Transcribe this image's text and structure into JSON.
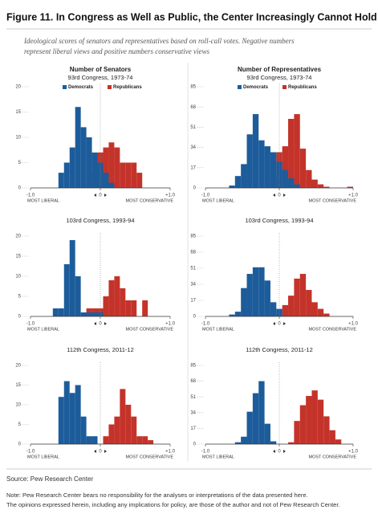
{
  "header": {
    "title": "Figure 11. In Congress as Well as Public, the Center Increasingly Cannot Hold",
    "subtitle_lines": [
      "Ideological scores of senators and representatives based on roll-call votes. Negative numbers",
      "represent liberal views and positive numbers conservative views"
    ]
  },
  "chart_data": [
    {
      "type": "histogram",
      "ylabel": "Number of Senators",
      "title": "93rd Congress, 1973-74",
      "legend": true,
      "bins": [
        -1,
        -0.92,
        -0.84,
        -0.76,
        -0.68,
        -0.6,
        -0.52,
        -0.44,
        -0.36,
        -0.28,
        -0.2,
        -0.12,
        -0.04,
        0.04,
        0.12,
        0.2,
        0.28,
        0.36,
        0.44,
        0.52,
        0.6,
        0.68,
        0.76,
        0.84,
        0.92,
        1
      ],
      "series": [
        {
          "name": "Democrats",
          "color": "#1d5c9b",
          "values": [
            0,
            0,
            0,
            0,
            0,
            3,
            5,
            8,
            16,
            12,
            10,
            7,
            5,
            3,
            1,
            0,
            0,
            0,
            0,
            0,
            0,
            0,
            0,
            0,
            0
          ]
        },
        {
          "name": "Republicans",
          "color": "#c4332a",
          "values": [
            0,
            0,
            0,
            0,
            0,
            0,
            0,
            0,
            0,
            0,
            0,
            3,
            7,
            8,
            9,
            8,
            5,
            5,
            5,
            3,
            0,
            0,
            0,
            0,
            0
          ]
        }
      ],
      "xlim": [
        -1,
        1
      ],
      "xticks": [
        {
          "value": -1,
          "label": "-1.0"
        },
        0,
        {
          "value": 1,
          "label": "+1.0"
        }
      ],
      "x_end_labels": [
        "MOST LIBERAL",
        "MOST CONSERVATIVE"
      ],
      "ylim": [
        0,
        20
      ],
      "yticks": [
        0,
        5,
        10,
        15,
        20
      ]
    },
    {
      "type": "histogram",
      "ylabel": "Number of Representatives",
      "title": "93rd Congress, 1973-74",
      "legend": true,
      "bins": [
        -1,
        -0.92,
        -0.84,
        -0.76,
        -0.68,
        -0.6,
        -0.52,
        -0.44,
        -0.36,
        -0.28,
        -0.2,
        -0.12,
        -0.04,
        0.04,
        0.12,
        0.2,
        0.28,
        0.36,
        0.44,
        0.52,
        0.6,
        0.68,
        0.76,
        0.84,
        0.92,
        1
      ],
      "series": [
        {
          "name": "Democrats",
          "color": "#1d5c9b",
          "values": [
            0,
            0,
            0,
            0,
            2,
            10,
            20,
            45,
            62,
            40,
            35,
            30,
            22,
            15,
            8,
            3,
            0,
            0,
            0,
            0,
            0,
            0,
            0,
            0,
            0
          ]
        },
        {
          "name": "Republicans",
          "color": "#c4332a",
          "values": [
            0,
            0,
            0,
            0,
            0,
            0,
            0,
            0,
            0,
            0,
            0,
            8,
            30,
            35,
            58,
            62,
            33,
            15,
            7,
            3,
            1,
            0,
            0,
            0,
            1
          ]
        }
      ],
      "xlim": [
        -1,
        1
      ],
      "xticks": [
        {
          "value": -1,
          "label": "-1.0"
        },
        0,
        {
          "value": 1,
          "label": "+1.0"
        }
      ],
      "x_end_labels": [
        "MOST LIBERAL",
        "MOST CONSERVATIVE"
      ],
      "ylim": [
        0,
        85
      ],
      "yticks": [
        0,
        17,
        34,
        51,
        68,
        85
      ]
    },
    {
      "type": "histogram",
      "title": "103rd Congress, 1993-94",
      "legend": false,
      "bins": [
        -1,
        -0.92,
        -0.84,
        -0.76,
        -0.68,
        -0.6,
        -0.52,
        -0.44,
        -0.36,
        -0.28,
        -0.2,
        -0.12,
        -0.04,
        0.04,
        0.12,
        0.2,
        0.28,
        0.36,
        0.44,
        0.52,
        0.6,
        0.68,
        0.76,
        0.84,
        0.92,
        1
      ],
      "series": [
        {
          "name": "Democrats",
          "color": "#1d5c9b",
          "values": [
            0,
            0,
            0,
            0,
            2,
            2,
            13,
            19,
            10,
            1,
            1,
            1,
            1,
            0,
            0,
            0,
            0,
            0,
            0,
            0,
            0,
            0,
            0,
            0,
            0
          ]
        },
        {
          "name": "Republicans",
          "color": "#c4332a",
          "values": [
            0,
            0,
            0,
            0,
            0,
            0,
            0,
            0,
            0,
            0,
            2,
            2,
            2,
            5,
            9,
            10,
            7,
            4,
            4,
            0,
            4,
            0,
            0,
            0,
            0
          ]
        }
      ],
      "xlim": [
        -1,
        1
      ],
      "xticks": [
        {
          "value": -1,
          "label": "-1.0"
        },
        0,
        {
          "value": 1,
          "label": "+1.0"
        }
      ],
      "x_end_labels": [
        "MOST LIBERAL",
        "MOST CONSERVATIVE"
      ],
      "ylim": [
        0,
        20
      ],
      "yticks": [
        0,
        5,
        10,
        15,
        20
      ]
    },
    {
      "type": "histogram",
      "title": "103rd Congress, 1993-94",
      "legend": false,
      "bins": [
        -1,
        -0.92,
        -0.84,
        -0.76,
        -0.68,
        -0.6,
        -0.52,
        -0.44,
        -0.36,
        -0.28,
        -0.2,
        -0.12,
        -0.04,
        0.04,
        0.12,
        0.2,
        0.28,
        0.36,
        0.44,
        0.52,
        0.6,
        0.68,
        0.76,
        0.84,
        0.92,
        1
      ],
      "series": [
        {
          "name": "Democrats",
          "color": "#1d5c9b",
          "values": [
            0,
            0,
            0,
            0,
            2,
            5,
            30,
            45,
            52,
            52,
            38,
            15,
            8,
            0,
            0,
            0,
            0,
            0,
            0,
            0,
            0,
            0,
            0,
            0,
            0
          ]
        },
        {
          "name": "Republicans",
          "color": "#c4332a",
          "values": [
            0,
            0,
            0,
            0,
            0,
            0,
            0,
            0,
            0,
            0,
            0,
            0,
            3,
            12,
            22,
            40,
            45,
            28,
            15,
            8,
            3,
            0,
            0,
            0,
            0
          ]
        }
      ],
      "xlim": [
        -1,
        1
      ],
      "xticks": [
        {
          "value": -1,
          "label": "-1.0"
        },
        0,
        {
          "value": 1,
          "label": "+1.0"
        }
      ],
      "x_end_labels": [
        "MOST LIBERAL",
        "MOST CONSERVATIVE"
      ],
      "ylim": [
        0,
        85
      ],
      "yticks": [
        0,
        17,
        34,
        51,
        68,
        85
      ]
    },
    {
      "type": "histogram",
      "title": "112th Congress, 2011-12",
      "legend": false,
      "bins": [
        -1,
        -0.92,
        -0.84,
        -0.76,
        -0.68,
        -0.6,
        -0.52,
        -0.44,
        -0.36,
        -0.28,
        -0.2,
        -0.12,
        -0.04,
        0.04,
        0.12,
        0.2,
        0.28,
        0.36,
        0.44,
        0.52,
        0.6,
        0.68,
        0.76,
        0.84,
        0.92,
        1
      ],
      "series": [
        {
          "name": "Democrats",
          "color": "#1d5c9b",
          "values": [
            0,
            0,
            0,
            0,
            0,
            12,
            16,
            13,
            15,
            7,
            2,
            2,
            0,
            0,
            0,
            0,
            0,
            0,
            0,
            0,
            0,
            0,
            0,
            0,
            0
          ]
        },
        {
          "name": "Republicans",
          "color": "#c4332a",
          "values": [
            0,
            0,
            0,
            0,
            0,
            0,
            0,
            0,
            0,
            0,
            0,
            0,
            0,
            2,
            5,
            7,
            14,
            10,
            7,
            2,
            2,
            1,
            0,
            0,
            0
          ]
        }
      ],
      "xlim": [
        -1,
        1
      ],
      "xticks": [
        {
          "value": -1,
          "label": "-1.0"
        },
        0,
        {
          "value": 1,
          "label": "+1.0"
        }
      ],
      "x_end_labels": [
        "MOST LIBERAL",
        "MOST CONSERVATIVE"
      ],
      "ylim": [
        0,
        20
      ],
      "yticks": [
        0,
        5,
        10,
        15,
        20
      ]
    },
    {
      "type": "histogram",
      "title": "112th Congress, 2011-12",
      "legend": false,
      "bins": [
        -1,
        -0.92,
        -0.84,
        -0.76,
        -0.68,
        -0.6,
        -0.52,
        -0.44,
        -0.36,
        -0.28,
        -0.2,
        -0.12,
        -0.04,
        0.04,
        0.12,
        0.2,
        0.28,
        0.36,
        0.44,
        0.52,
        0.6,
        0.68,
        0.76,
        0.84,
        0.92,
        1
      ],
      "series": [
        {
          "name": "Democrats",
          "color": "#1d5c9b",
          "values": [
            0,
            0,
            0,
            0,
            0,
            2,
            8,
            35,
            55,
            68,
            22,
            3,
            0,
            0,
            0,
            0,
            0,
            0,
            0,
            0,
            0,
            0,
            0,
            0,
            0
          ]
        },
        {
          "name": "Republicans",
          "color": "#c4332a",
          "values": [
            0,
            0,
            0,
            0,
            0,
            0,
            0,
            0,
            0,
            0,
            0,
            0,
            0,
            0,
            2,
            25,
            42,
            52,
            58,
            48,
            30,
            15,
            5,
            0,
            0
          ]
        }
      ],
      "xlim": [
        -1,
        1
      ],
      "xticks": [
        {
          "value": -1,
          "label": "-1.0"
        },
        0,
        {
          "value": 1,
          "label": "+1.0"
        }
      ],
      "x_end_labels": [
        "MOST LIBERAL",
        "MOST CONSERVATIVE"
      ],
      "ylim": [
        0,
        85
      ],
      "yticks": [
        0,
        17,
        34,
        51,
        68,
        85
      ]
    }
  ],
  "footer": {
    "source": "Source: Pew Research Center",
    "notes": [
      "Note: Pew Research Center bears no responsibility for the analyses or interpretations of the data presented here.",
      "The opinions expressed herein, including any implications for policy, are those of the author and not of Pew Research Center."
    ]
  }
}
